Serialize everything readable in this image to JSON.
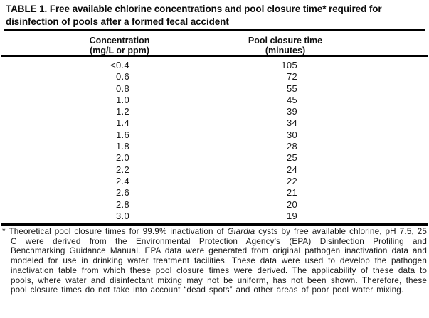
{
  "page": {
    "background": "#ffffff",
    "text_color": "#161616",
    "rule_color": "#000000"
  },
  "table": {
    "title": "TABLE 1. Free available chlorine concentrations and pool closure time* required for disinfection of pools after a formed fecal accident",
    "columns": [
      {
        "name": "Concentration",
        "unit": "(mg/L or ppm)"
      },
      {
        "name": "Pool closure time",
        "unit": "(minutes)"
      }
    ],
    "rows": [
      [
        "<0.4",
        "105"
      ],
      [
        "0.6",
        "72"
      ],
      [
        "0.8",
        "55"
      ],
      [
        "1.0",
        "45"
      ],
      [
        "1.2",
        "39"
      ],
      [
        "1.4",
        "34"
      ],
      [
        "1.6",
        "30"
      ],
      [
        "1.8",
        "28"
      ],
      [
        "2.0",
        "25"
      ],
      [
        "2.2",
        "24"
      ],
      [
        "2.4",
        "22"
      ],
      [
        "2.6",
        "21"
      ],
      [
        "2.8",
        "20"
      ],
      [
        "3.0",
        "19"
      ]
    ]
  },
  "footnote": {
    "marker": "*",
    "text_before_italic": " Theoretical pool closure times for 99.9% inactivation of ",
    "italic_term": "Giardia",
    "text_after_italic": " cysts by free available chlorine, pH 7.5, 25 C were derived from the Environmental Protection Agency’s (EPA) Disinfection Profiling and Benchmarking Guidance Manual. EPA data were generated from original pathogen inactivation data and modeled for use in drinking water treatment facilities. These data were used to develop the pathogen inactivation table from which these pool closure times were derived. The applicability of these data to pools, where water and disinfectant mixing may not be uniform, has not been shown. Therefore, these pool closure times do not take into account “dead spots” and other areas of poor pool water mixing."
  }
}
